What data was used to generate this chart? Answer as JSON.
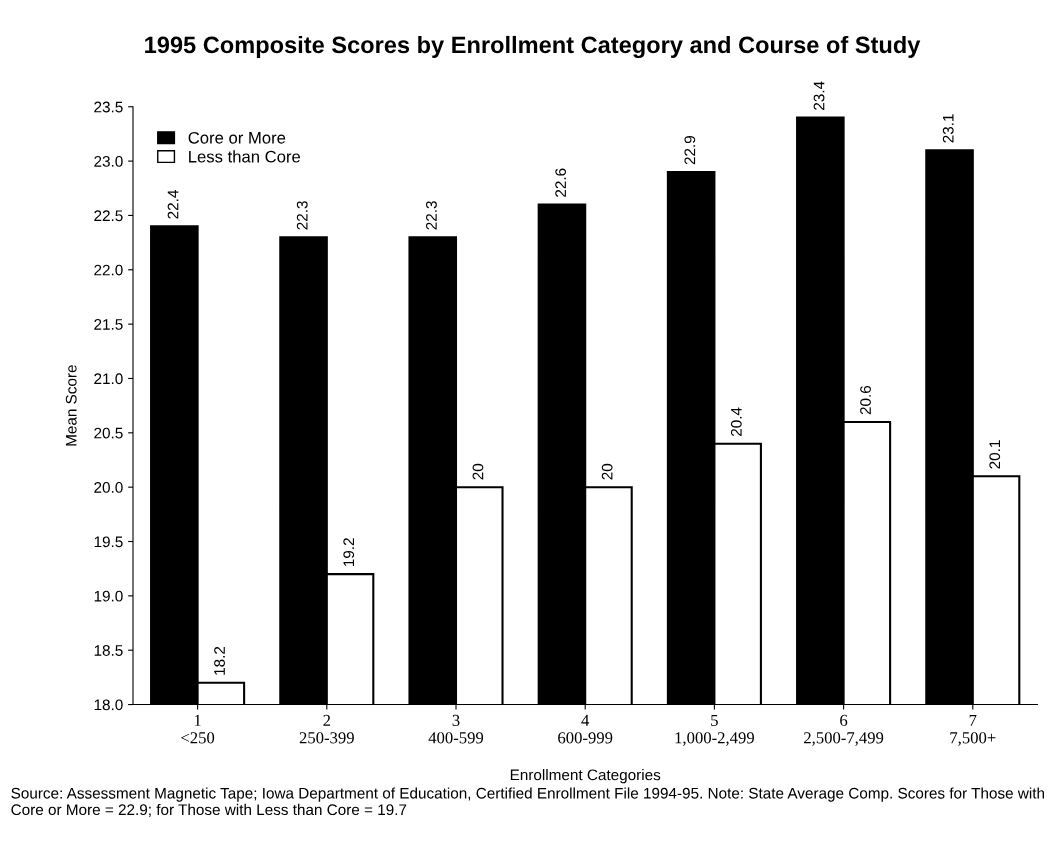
{
  "chart_data": {
    "type": "bar",
    "title": "1995 Composite Scores by Enrollment Category and Course of Study",
    "categories": [
      "1\n<250",
      "2\n250-399",
      "3\n400-599",
      "4\n600-999",
      "5\n1,000-2,499",
      "6\n2,500-7,499",
      "7\n7,500+"
    ],
    "series": [
      {
        "name": "Core or More",
        "color": "#000000",
        "values": [
          22.4,
          22.3,
          22.3,
          22.6,
          22.9,
          23.4,
          23.1
        ]
      },
      {
        "name": "Less than Core",
        "color": "#ffffff",
        "values": [
          18.2,
          19.2,
          20,
          20,
          20.4,
          20.6,
          20.1
        ]
      }
    ],
    "xlabel": "Enrollment Categories",
    "ylabel": "Mean Score",
    "ylim": [
      18.0,
      23.5
    ],
    "yticks": [
      {
        "value": 18,
        "label": "18.0"
      },
      {
        "value": 18.5,
        "label": "18.5"
      },
      {
        "value": 19,
        "label": "19.0"
      },
      {
        "value": 19.5,
        "label": "19.5"
      },
      {
        "value": 20,
        "label": "20.0"
      },
      {
        "value": 20.5,
        "label": "20.5"
      },
      {
        "value": 21,
        "label": "21.0"
      },
      {
        "value": 21.5,
        "label": "21.5"
      },
      {
        "value": 22,
        "label": "22.0"
      },
      {
        "value": 22.5,
        "label": "22.5"
      },
      {
        "value": 23,
        "label": "23.0"
      },
      {
        "value": 23.5,
        "label": "23.5"
      }
    ],
    "data_labels": true,
    "grid": false,
    "legend": "top left",
    "annotations": [
      "Source: Assessment Magnetic Tape; Iowa Department of Education, Certified Enrollment File 1994-95. Note: State Average Comp. Scores for Those with Core or More = 22.9; for Those with Less than Core = 19.7"
    ]
  }
}
